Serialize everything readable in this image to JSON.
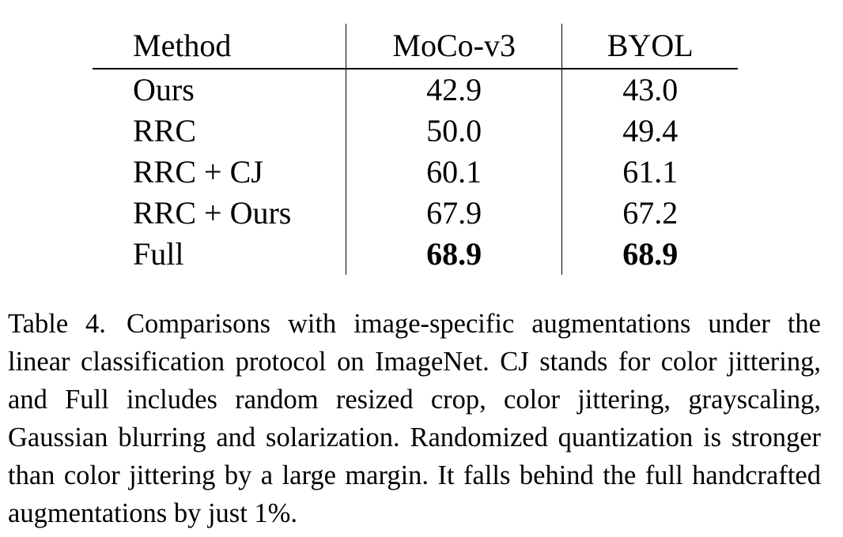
{
  "table": {
    "headers": [
      "Method",
      "MoCo-v3",
      "BYOL"
    ],
    "rows": [
      {
        "method": "Ours",
        "moco_v3": "42.9",
        "byol": "43.0",
        "bold": false
      },
      {
        "method": "RRC",
        "moco_v3": "50.0",
        "byol": "49.4",
        "bold": false
      },
      {
        "method": "RRC + CJ",
        "moco_v3": "60.1",
        "byol": "61.1",
        "bold": false
      },
      {
        "method": "RRC + Ours",
        "moco_v3": "67.9",
        "byol": "67.2",
        "bold": false
      },
      {
        "method": "Full",
        "moco_v3": "68.9",
        "byol": "68.9",
        "bold": true
      }
    ]
  },
  "caption": {
    "label": "Table 4.",
    "text": "Comparisons with image-specific augmentations under the linear classification protocol on ImageNet. CJ stands for color jittering, and Full includes random resized crop, color jittering, grayscaling, Gaussian blurring and solarization. Randomized quantization is stronger than color jittering by a large margin. It falls behind the full handcrafted augmentations by just 1%."
  }
}
